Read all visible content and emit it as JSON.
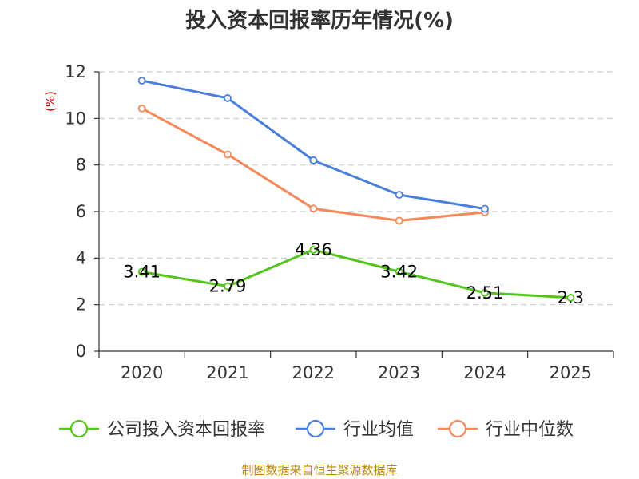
{
  "chart_data": {
    "type": "line",
    "title": "投入资本回报率历年情况(%)",
    "ylabel": "(%)",
    "xlabel": "",
    "categories": [
      "2020",
      "2021",
      "2022",
      "2023",
      "2024",
      "2025"
    ],
    "ylim": [
      0,
      12
    ],
    "yticks": [
      0,
      2,
      4,
      6,
      8,
      10,
      12
    ],
    "grid": true,
    "legend_position": "bottom",
    "series": [
      {
        "name": "公司投入资本回报率",
        "color": "#52c41a",
        "values": [
          3.41,
          2.79,
          4.36,
          3.42,
          2.51,
          2.3
        ],
        "labels": [
          "3.41",
          "2.79",
          "4.36",
          "3.42",
          "2.51",
          "2.3"
        ],
        "show_labels": true
      },
      {
        "name": "行业均值",
        "color": "#4a7fdc",
        "values": [
          11.62,
          10.87,
          8.2,
          6.72,
          6.12,
          null
        ],
        "show_labels": false
      },
      {
        "name": "行业中位数",
        "color": "#f5895a",
        "values": [
          10.43,
          8.45,
          6.13,
          5.61,
          5.97,
          null
        ],
        "show_labels": false
      }
    ]
  },
  "source": "制图数据来自恒生聚源数据库"
}
